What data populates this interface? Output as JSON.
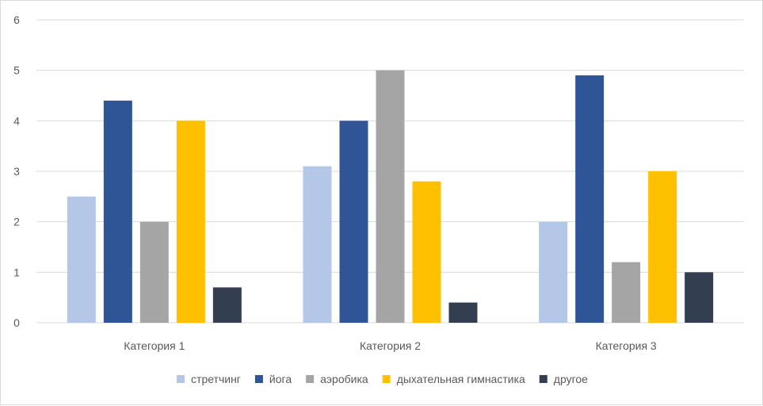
{
  "chart_data": {
    "type": "bar",
    "categories": [
      "Категория 1",
      "Категория 2",
      "Категория 3"
    ],
    "series": [
      {
        "name": "стретчинг",
        "color": "#B4C7E7",
        "values": [
          2.5,
          3.1,
          2.0
        ]
      },
      {
        "name": "йога",
        "color": "#2F5597",
        "values": [
          4.4,
          4.0,
          4.9
        ]
      },
      {
        "name": "аэробика",
        "color": "#A5A5A5",
        "values": [
          2.0,
          5.0,
          1.2
        ]
      },
      {
        "name": "дыхательная гимнастика",
        "color": "#FFC000",
        "values": [
          4.0,
          2.8,
          3.0
        ]
      },
      {
        "name": "другое",
        "color": "#333F50",
        "values": [
          0.7,
          0.4,
          1.0
        ]
      }
    ],
    "yticks": [
      "0",
      "1",
      "2",
      "3",
      "4",
      "5",
      "6"
    ],
    "ylim": [
      0,
      6
    ],
    "grid": true,
    "legend_position": "bottom",
    "gridline_color": "#d9d9d9"
  }
}
